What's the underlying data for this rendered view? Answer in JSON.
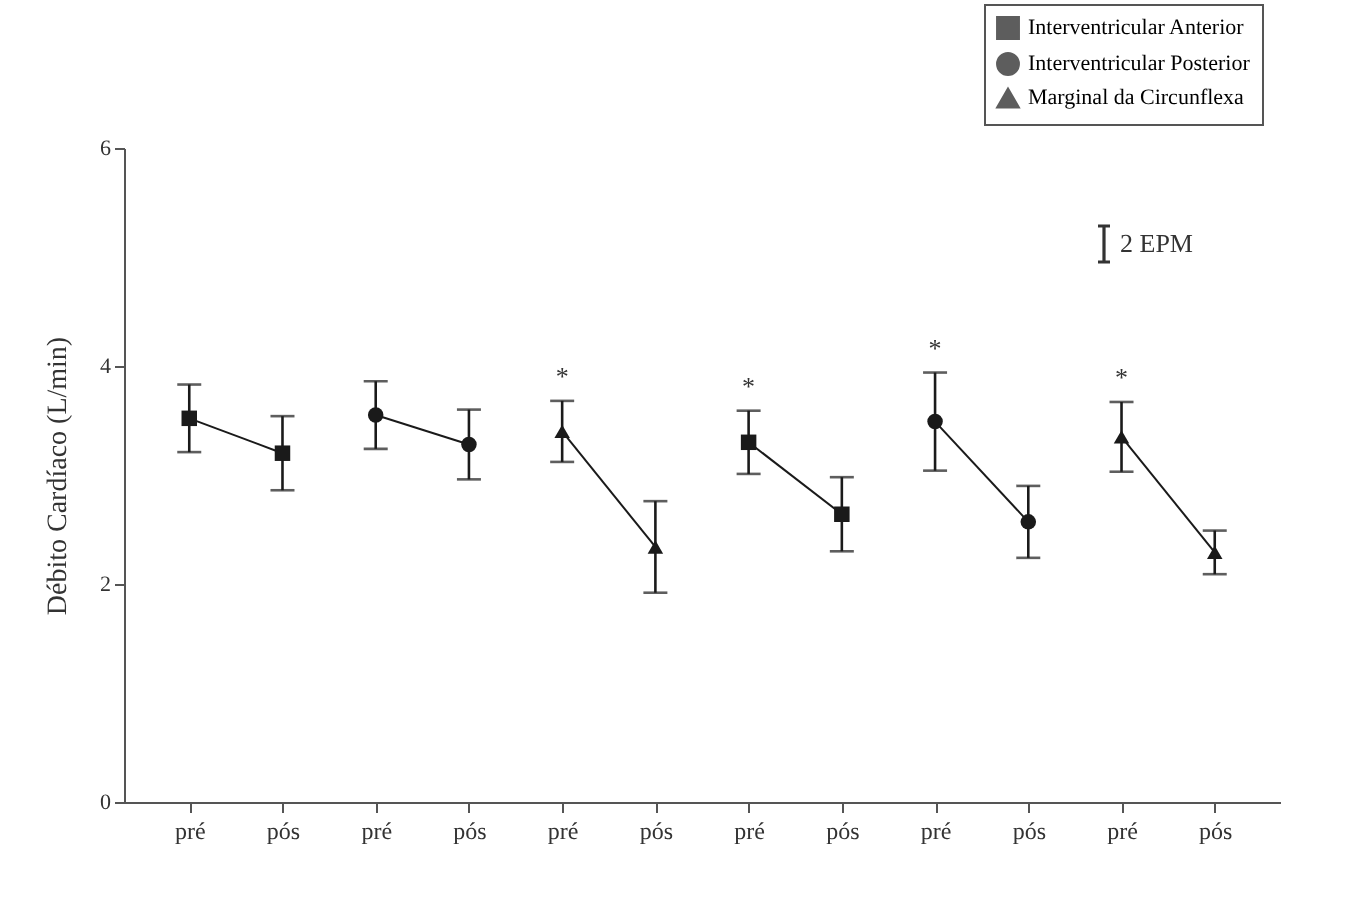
{
  "chart_data": {
    "type": "line",
    "ylabel": "Débito Cardíaco (L/min)",
    "categories": [
      "pré",
      "pós",
      "pré",
      "pós",
      "pré",
      "pós",
      "pré",
      "pós",
      "pré",
      "pós",
      "pré",
      "pós"
    ],
    "ylim": [
      0,
      6
    ],
    "yticks": [
      0,
      2,
      4,
      6
    ],
    "grid": false,
    "legend": "top right",
    "series": [
      {
        "name": "Interventricular Anterior",
        "color": "#1a1a1a",
        "marker": "square",
        "values": [
          3.52,
          3.2,
          null,
          null,
          null,
          null,
          3.3,
          2.64,
          null,
          null,
          null,
          null
        ],
        "errors": [
          0.31,
          0.34,
          null,
          null,
          null,
          null,
          0.29,
          0.34,
          null,
          null,
          null,
          null
        ],
        "value_labels": [
          null,
          null,
          null,
          null,
          null,
          null,
          "*",
          null,
          null,
          null,
          null,
          null
        ]
      },
      {
        "name": "Interventricular Posterior",
        "color": "#1a1a1a",
        "marker": "circle",
        "values": [
          null,
          null,
          3.55,
          3.28,
          null,
          null,
          null,
          null,
          3.49,
          2.57,
          null,
          null
        ],
        "errors": [
          null,
          null,
          0.31,
          0.32,
          null,
          null,
          null,
          null,
          0.45,
          0.33,
          null,
          null
        ],
        "value_labels": [
          null,
          null,
          null,
          null,
          null,
          null,
          null,
          null,
          "*",
          null,
          null,
          null
        ]
      },
      {
        "name": "Marginal da Circunflexa",
        "color": "#1a1a1a",
        "marker": "triangle",
        "values": [
          null,
          null,
          null,
          null,
          3.4,
          2.34,
          null,
          null,
          null,
          null,
          3.35,
          2.29
        ],
        "errors": [
          null,
          null,
          null,
          null,
          0.28,
          0.42,
          null,
          null,
          null,
          null,
          0.32,
          0.2
        ],
        "value_labels": [
          null,
          null,
          null,
          null,
          "*",
          null,
          null,
          null,
          null,
          null,
          "*",
          null
        ]
      }
    ],
    "annotations": [
      "2 EPM"
    ]
  }
}
